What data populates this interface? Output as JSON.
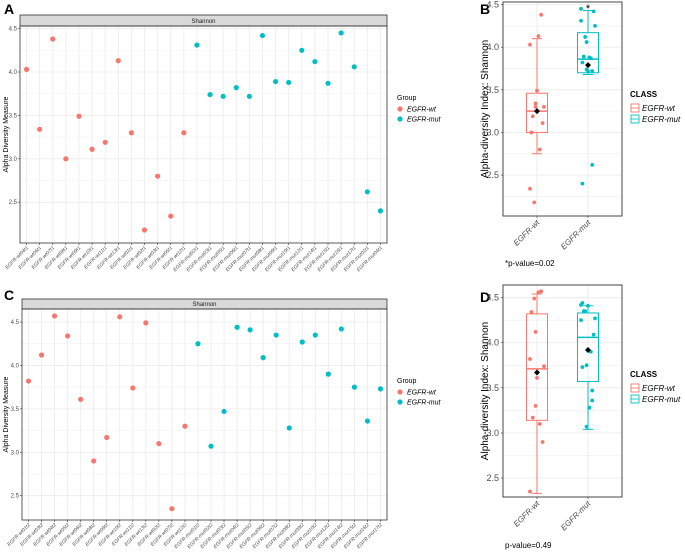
{
  "colors": {
    "wt": "#F8766D",
    "mut": "#00BFC4",
    "mean": "#000000",
    "grid": "#EBEBEB",
    "strip": "#D9D9D9"
  },
  "chart_data": [
    {
      "panel": "A",
      "type": "scatter",
      "strip_title": "Shannon",
      "ylabel": "Alpha Diversity Measure",
      "ylim": [
        2.03,
        4.53
      ],
      "yticks": [
        "2.5",
        "3.0",
        "3.5",
        "4.0",
        "4.5"
      ],
      "legend": {
        "title": "Group",
        "entries": [
          "EGFR-wt",
          "EGFR-mut"
        ],
        "placement": "right"
      },
      "categories": [
        "EGFR-wt04t1",
        "EGFR-wt06t1",
        "EGFR-wt07t1",
        "EGFR-wt08t1",
        "EGFR-wt09t1",
        "EGFR-wt10t1",
        "EGFR-wt11t1",
        "EGFR-wt13t1",
        "EGFR-wt01t1",
        "EGFR-wt02t1",
        "EGFR-wt03t1",
        "EGFR-wt05t1",
        "EGFR-wt12t1",
        "EGFR-mut02t1",
        "EGFR-mut03t1",
        "EGFR-mut05t1",
        "EGFR-mut06t1",
        "EGFR-mut07t1",
        "EGFR-mut08t1",
        "EGFR-mut09t1",
        "EGFR-mut10t1",
        "EGFR-mut12t1",
        "EGFR-mut14t1",
        "EGFR-mut15t1",
        "EGFR-mut16t1",
        "EGFR-mut17t1",
        "EGFR-mut01t1",
        "EGFR-mut04t1"
      ],
      "values": [
        4.03,
        3.34,
        4.38,
        3.0,
        3.49,
        3.11,
        3.19,
        4.13,
        3.3,
        2.18,
        2.8,
        2.34,
        3.3,
        4.31,
        3.74,
        3.72,
        3.82,
        3.72,
        4.42,
        3.89,
        3.88,
        4.25,
        4.12,
        3.87,
        4.45,
        4.06,
        2.62,
        2.4
      ],
      "groups": [
        "wt",
        "wt",
        "wt",
        "wt",
        "wt",
        "wt",
        "wt",
        "wt",
        "wt",
        "wt",
        "wt",
        "wt",
        "wt",
        "mut",
        "mut",
        "mut",
        "mut",
        "mut",
        "mut",
        "mut",
        "mut",
        "mut",
        "mut",
        "mut",
        "mut",
        "mut",
        "mut",
        "mut"
      ]
    },
    {
      "panel": "B",
      "type": "box",
      "ylabel": "Alpha-diversity Index: Shannon",
      "ylim": [
        2.02,
        4.53
      ],
      "yticks": [
        "2.5",
        "3.0",
        "3.5",
        "4.0",
        "4.5"
      ],
      "categories": [
        "EGFR-wt",
        "EGFR-mut"
      ],
      "legend": {
        "title": "CLASS",
        "entries": [
          "EGFR-wt",
          "EGFR-mut"
        ],
        "placement": "right"
      },
      "boxes": [
        {
          "group": "wt",
          "lower_whisker": 2.75,
          "q1": 3.0,
          "median": 3.25,
          "q3": 3.46,
          "upper_whisker": 4.1,
          "mean": 3.25
        },
        {
          "group": "mut",
          "lower_whisker": 3.68,
          "q1": 3.7,
          "median": 3.86,
          "q3": 4.17,
          "upper_whisker": 4.43,
          "mean": 3.79
        }
      ],
      "significance_marker": "*",
      "annotation": "*p-value=0.02"
    },
    {
      "panel": "C",
      "type": "scatter",
      "strip_title": "Shannon",
      "ylabel": "Alpha Diversity Measure",
      "ylim": [
        2.22,
        4.65
      ],
      "yticks": [
        "2.5",
        "3.0",
        "3.5",
        "4.0",
        "4.5"
      ],
      "legend": {
        "title": "Group",
        "entries": [
          "EGFR-wt",
          "EGFR-mut"
        ],
        "placement": "right"
      },
      "categories": [
        "EGFR-wt01t2",
        "EGFR-wt03t2",
        "EGFR-wt04t2",
        "EGFR-wt05t2",
        "EGFR-wt06t2",
        "EGFR-wt08t2",
        "EGFR-wt09t2",
        "EGFR-wt10t2",
        "EGFR-wt11t2",
        "EGFR-wt13t2",
        "EGFR-wt02t2",
        "EGFR-wt07t2",
        "EGFR-wt12t2",
        "EGFR-mut01t2",
        "EGFR-mut02t2",
        "EGFR-mut03t2",
        "EGFR-mut04t2",
        "EGFR-mut05t2",
        "EGFR-mut06t2",
        "EGFR-mut07t2",
        "EGFR-mut08t2",
        "EGFR-mut09t2",
        "EGFR-mut10t2",
        "EGFR-mut12t2",
        "EGFR-mut14t2",
        "EGFR-mut15t2",
        "EGFR-mut16t2",
        "EGFR-mut17t2"
      ],
      "values": [
        3.82,
        4.12,
        4.57,
        4.34,
        3.61,
        2.9,
        3.17,
        4.56,
        3.74,
        4.49,
        3.1,
        2.35,
        3.3,
        4.25,
        3.07,
        3.47,
        4.44,
        4.41,
        4.09,
        4.35,
        3.28,
        4.27,
        4.35,
        3.9,
        4.42,
        3.75,
        3.36,
        3.73
      ],
      "groups": [
        "wt",
        "wt",
        "wt",
        "wt",
        "wt",
        "wt",
        "wt",
        "wt",
        "wt",
        "wt",
        "wt",
        "wt",
        "wt",
        "mut",
        "mut",
        "mut",
        "mut",
        "mut",
        "mut",
        "mut",
        "mut",
        "mut",
        "mut",
        "mut",
        "mut",
        "mut",
        "mut",
        "mut"
      ]
    },
    {
      "panel": "D",
      "type": "box",
      "ylabel": "Alpha-diversity Index: Shannon",
      "ylim": [
        2.29,
        4.64
      ],
      "yticks": [
        "2.5",
        "3.0",
        "3.5",
        "4.0",
        "4.5"
      ],
      "categories": [
        "EGFR-wt",
        "EGFR-mut"
      ],
      "legend": {
        "title": "CLASS",
        "entries": [
          "EGFR-wt",
          "EGFR-mut"
        ],
        "placement": "right"
      },
      "boxes": [
        {
          "group": "wt",
          "lower_whisker": 2.33,
          "q1": 3.14,
          "median": 3.71,
          "q3": 4.32,
          "upper_whisker": 4.54,
          "mean": 3.67
        },
        {
          "group": "mut",
          "lower_whisker": 3.04,
          "q1": 3.57,
          "median": 4.06,
          "q3": 4.33,
          "upper_whisker": 4.41,
          "mean": 3.92
        }
      ],
      "annotation": "p-value=0.49"
    }
  ]
}
